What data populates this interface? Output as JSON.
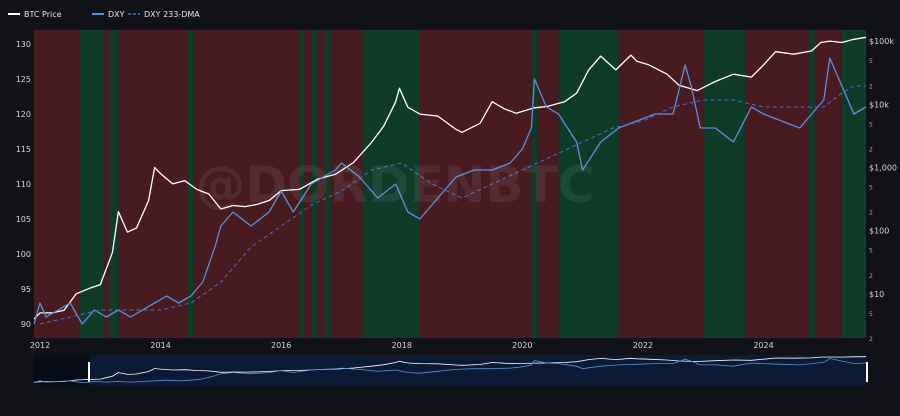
{
  "watermark": "@DORDENBTC",
  "colors": {
    "background": "#111217",
    "plot_background": "#15161b",
    "red_shade": "#5a1d24",
    "green_shade": "#0e4a2e",
    "btc": "#ffffff",
    "dxy": "#5b8fd9",
    "dxy_dma": "#4a6fc8",
    "tick_text": "#d7d7d7"
  },
  "chart_data": {
    "type": "line",
    "legend": {
      "placement": "top-left",
      "entries": [
        "BTC Price",
        "DXY",
        "DXY 233-DMA"
      ]
    },
    "x_ticks": [
      "2012",
      "2014",
      "2016",
      "2018",
      "2020",
      "2022",
      "2024"
    ],
    "x_range": [
      2011.9,
      2025.7
    ],
    "left_axis": {
      "range": [
        88,
        132
      ],
      "ticks": [
        90,
        95,
        100,
        105,
        110,
        115,
        120,
        125,
        130
      ]
    },
    "right_axis": {
      "scale": "log",
      "range": [
        2,
        150000
      ],
      "major_ticks": [
        {
          "value": 10,
          "label": "$10"
        },
        {
          "value": 100,
          "label": "$100"
        },
        {
          "value": 1000,
          "label": "$1,000"
        },
        {
          "value": 10000,
          "label": "$10k"
        },
        {
          "value": 100000,
          "label": "$100k"
        }
      ],
      "minor_ticks": [
        {
          "value": 2,
          "label": "2"
        },
        {
          "value": 5,
          "label": "5"
        },
        {
          "value": 20,
          "label": "2"
        },
        {
          "value": 50,
          "label": "5"
        },
        {
          "value": 200,
          "label": "2"
        },
        {
          "value": 500,
          "label": "5"
        },
        {
          "value": 2000,
          "label": "2"
        },
        {
          "value": 5000,
          "label": "5"
        },
        {
          "value": 20000,
          "label": "2"
        },
        {
          "value": 50000,
          "label": "5"
        }
      ]
    },
    "shading": [
      {
        "start": 2011.9,
        "end": 2012.65,
        "regime": "red"
      },
      {
        "start": 2012.65,
        "end": 2013.05,
        "regime": "green"
      },
      {
        "start": 2013.05,
        "end": 2013.15,
        "regime": "red"
      },
      {
        "start": 2013.15,
        "end": 2013.3,
        "regime": "green"
      },
      {
        "start": 2013.3,
        "end": 2014.45,
        "regime": "red"
      },
      {
        "start": 2014.45,
        "end": 2014.55,
        "regime": "green"
      },
      {
        "start": 2014.55,
        "end": 2016.3,
        "regime": "red"
      },
      {
        "start": 2016.3,
        "end": 2016.38,
        "regime": "green"
      },
      {
        "start": 2016.38,
        "end": 2016.5,
        "regime": "red"
      },
      {
        "start": 2016.5,
        "end": 2016.6,
        "regime": "green"
      },
      {
        "start": 2016.6,
        "end": 2016.72,
        "regime": "red"
      },
      {
        "start": 2016.72,
        "end": 2016.82,
        "regime": "green"
      },
      {
        "start": 2016.82,
        "end": 2017.35,
        "regime": "red"
      },
      {
        "start": 2017.35,
        "end": 2018.3,
        "regime": "green"
      },
      {
        "start": 2018.3,
        "end": 2020.15,
        "regime": "red"
      },
      {
        "start": 2020.15,
        "end": 2020.25,
        "regime": "green"
      },
      {
        "start": 2020.25,
        "end": 2020.6,
        "regime": "red"
      },
      {
        "start": 2020.6,
        "end": 2021.6,
        "regime": "green"
      },
      {
        "start": 2021.6,
        "end": 2023.0,
        "regime": "red"
      },
      {
        "start": 2023.0,
        "end": 2023.7,
        "regime": "green"
      },
      {
        "start": 2023.7,
        "end": 2024.75,
        "regime": "red"
      },
      {
        "start": 2024.75,
        "end": 2024.85,
        "regime": "green"
      },
      {
        "start": 2024.85,
        "end": 2025.3,
        "regime": "red"
      },
      {
        "start": 2025.3,
        "end": 2025.7,
        "regime": "green"
      }
    ],
    "series": [
      {
        "name": "BTC Price",
        "axis": "right",
        "style": "solid",
        "x": [
          2011.9,
          2012.0,
          2012.2,
          2012.4,
          2012.6,
          2012.8,
          2013.0,
          2013.2,
          2013.3,
          2013.45,
          2013.6,
          2013.8,
          2013.9,
          2014.0,
          2014.2,
          2014.4,
          2014.6,
          2014.8,
          2015.0,
          2015.2,
          2015.4,
          2015.6,
          2015.8,
          2016.0,
          2016.3,
          2016.6,
          2016.9,
          2017.2,
          2017.5,
          2017.7,
          2017.9,
          2017.96,
          2018.1,
          2018.3,
          2018.6,
          2018.9,
          2019.0,
          2019.3,
          2019.5,
          2019.7,
          2019.9,
          2020.2,
          2020.4,
          2020.7,
          2020.9,
          2021.1,
          2021.3,
          2021.55,
          2021.8,
          2021.9,
          2022.1,
          2022.4,
          2022.6,
          2022.9,
          2023.2,
          2023.5,
          2023.8,
          2024.0,
          2024.2,
          2024.5,
          2024.8,
          2024.95,
          2025.1,
          2025.3,
          2025.5,
          2025.7
        ],
        "values": [
          4,
          5,
          5,
          5.5,
          10,
          12,
          14,
          45,
          200,
          95,
          110,
          300,
          1000,
          800,
          550,
          620,
          450,
          380,
          220,
          250,
          240,
          260,
          300,
          430,
          450,
          650,
          780,
          1200,
          2500,
          4500,
          11000,
          18000,
          9000,
          7000,
          6500,
          4000,
          3600,
          5000,
          11000,
          8500,
          7200,
          8800,
          9200,
          11000,
          15000,
          35000,
          58000,
          35000,
          60000,
          48000,
          42000,
          30000,
          20000,
          16500,
          23000,
          30000,
          27000,
          42000,
          68000,
          62000,
          70000,
          95000,
          100000,
          95000,
          107000,
          115000
        ]
      },
      {
        "name": "DXY",
        "axis": "left",
        "style": "solid",
        "x": [
          2011.9,
          2012.0,
          2012.1,
          2012.3,
          2012.5,
          2012.7,
          2012.9,
          2013.1,
          2013.3,
          2013.5,
          2013.7,
          2013.9,
          2014.1,
          2014.3,
          2014.5,
          2014.7,
          2014.9,
          2015.0,
          2015.2,
          2015.5,
          2015.8,
          2016.0,
          2016.2,
          2016.5,
          2016.9,
          2017.0,
          2017.3,
          2017.6,
          2017.9,
          2018.1,
          2018.3,
          2018.6,
          2018.9,
          2019.2,
          2019.5,
          2019.8,
          2020.0,
          2020.15,
          2020.2,
          2020.4,
          2020.6,
          2020.9,
          2021.0,
          2021.3,
          2021.6,
          2021.9,
          2022.2,
          2022.5,
          2022.7,
          2022.8,
          2022.95,
          2023.2,
          2023.5,
          2023.8,
          2024.0,
          2024.3,
          2024.6,
          2024.8,
          2025.0,
          2025.1,
          2025.3,
          2025.5,
          2025.7
        ],
        "values": [
          90,
          93,
          91,
          92,
          93,
          90,
          92,
          91,
          92,
          91,
          92,
          93,
          94,
          93,
          94,
          96,
          101,
          104,
          106,
          104,
          106,
          109,
          106,
          110,
          112,
          113,
          111,
          108,
          110,
          106,
          105,
          108,
          111,
          112,
          112,
          113,
          115,
          118,
          125,
          121,
          120,
          116,
          112,
          116,
          118,
          119,
          120,
          120,
          127,
          124,
          118,
          118,
          116,
          121,
          120,
          119,
          118,
          120,
          122,
          128,
          124,
          120,
          121
        ]
      },
      {
        "name": "DXY 233-DMA",
        "axis": "left",
        "style": "dashed",
        "x": [
          2012.0,
          2012.5,
          2013.0,
          2013.5,
          2014.0,
          2014.5,
          2015.0,
          2015.5,
          2016.0,
          2016.5,
          2017.0,
          2017.5,
          2018.0,
          2018.5,
          2019.0,
          2019.5,
          2020.0,
          2020.5,
          2021.0,
          2021.5,
          2022.0,
          2022.5,
          2023.0,
          2023.5,
          2024.0,
          2024.5,
          2025.0,
          2025.3,
          2025.5,
          2025.7
        ],
        "values": [
          90,
          91,
          92,
          92,
          92,
          93,
          96,
          101,
          104,
          107,
          109,
          112,
          113,
          110,
          108,
          110,
          112,
          114,
          116,
          118,
          119,
          121,
          122,
          122,
          121,
          121,
          121,
          123,
          124,
          124
        ]
      }
    ]
  }
}
